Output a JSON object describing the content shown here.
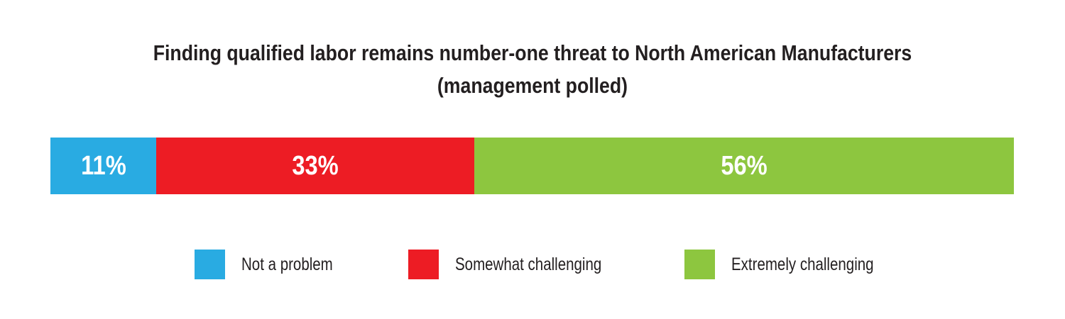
{
  "chart_data": {
    "type": "bar",
    "orientation": "horizontal-stacked",
    "title_lines": [
      "Finding qualified labor remains number-one threat to North American Manufacturers",
      "(management polled)"
    ],
    "unit": "%",
    "series": [
      {
        "name": "Not a problem",
        "value": 11,
        "label": "11%",
        "color": "#29abe2"
      },
      {
        "name": "Somewhat challenging",
        "value": 33,
        "label": "33%",
        "color": "#ed1c24"
      },
      {
        "name": "Extremely challenging",
        "value": 56,
        "label": "56%",
        "color": "#8dc63f"
      }
    ],
    "legend_position": "bottom",
    "grid": false
  }
}
